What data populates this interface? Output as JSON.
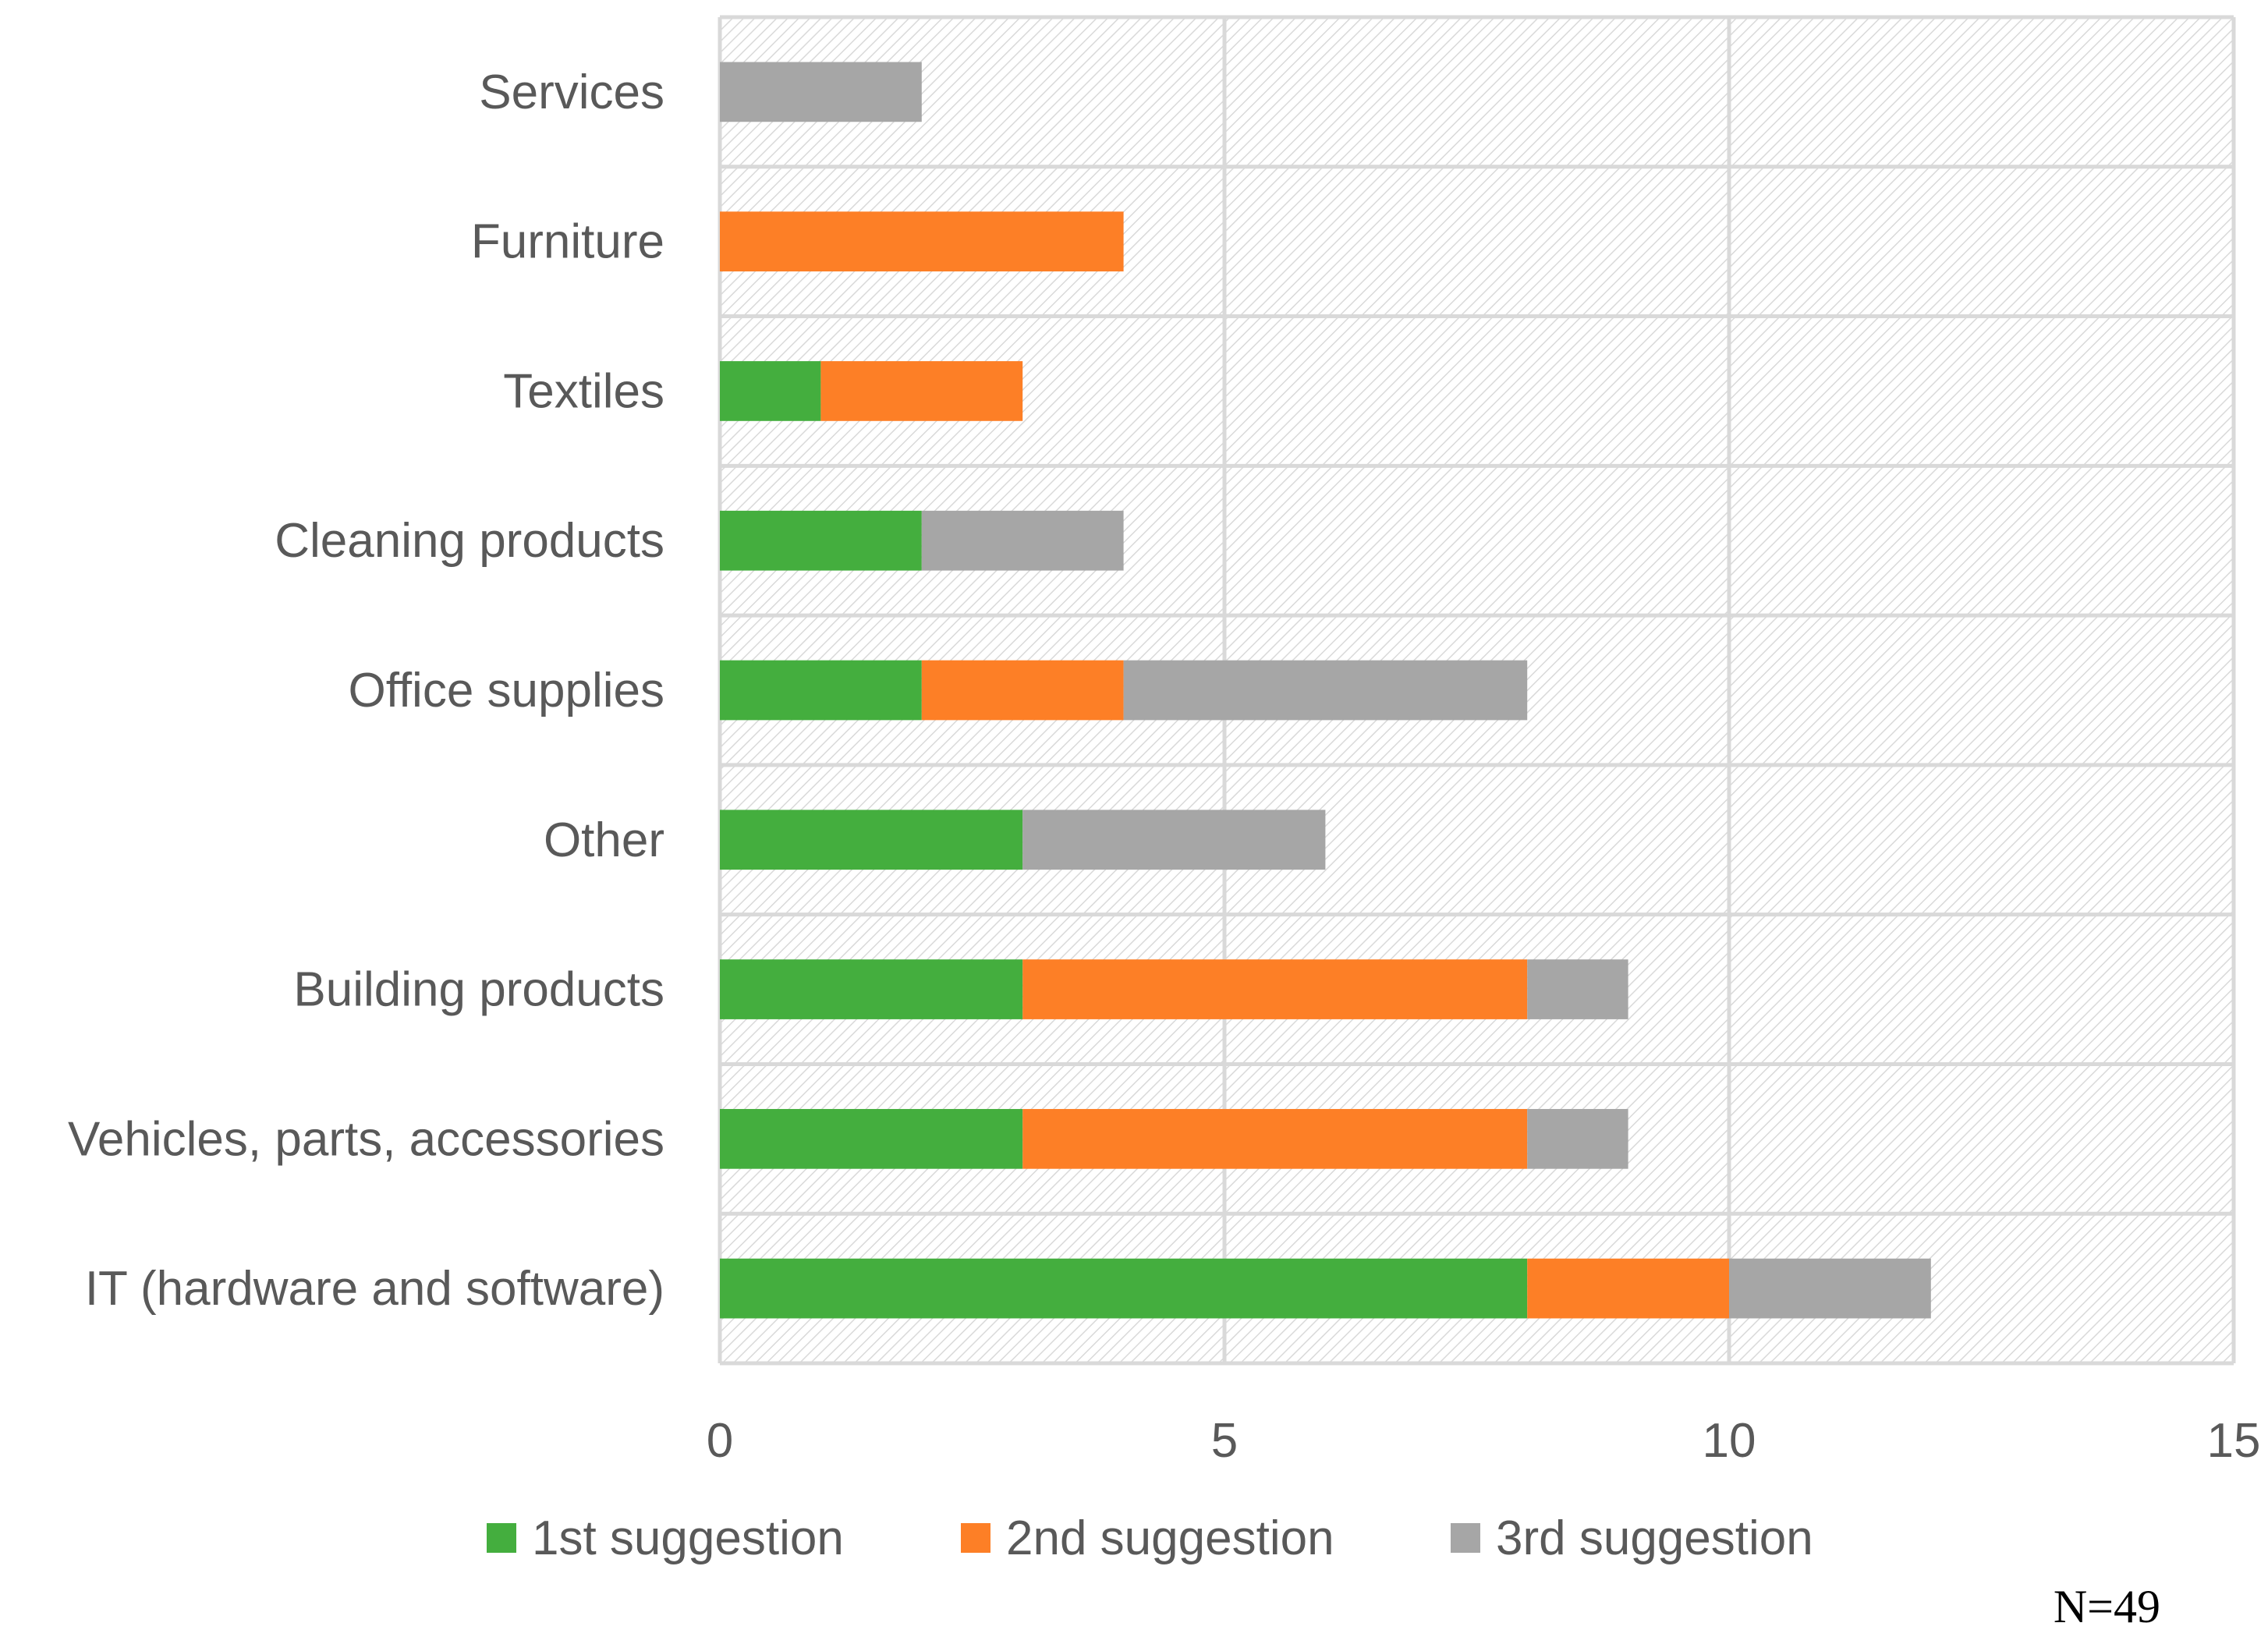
{
  "chart_data": {
    "type": "bar",
    "orientation": "horizontal",
    "stacked": true,
    "categories": [
      "Services",
      "Furniture",
      "Textiles",
      "Cleaning products",
      "Office supplies",
      "Other",
      "Building products",
      "Vehicles, parts, accessories",
      "IT (hardware and software)"
    ],
    "series": [
      {
        "name": "1st suggestion",
        "color": "#44AE3E",
        "values": [
          0,
          0,
          1,
          2,
          2,
          3,
          3,
          3,
          8
        ]
      },
      {
        "name": "2nd suggestion",
        "color": "#FD7F26",
        "values": [
          0,
          4,
          2,
          0,
          2,
          0,
          5,
          5,
          2
        ]
      },
      {
        "name": "3rd suggestion",
        "color": "#A6A6A6",
        "values": [
          2,
          0,
          0,
          2,
          4,
          3,
          1,
          1,
          2
        ]
      }
    ],
    "xlim": [
      0,
      15
    ],
    "xticks": [
      0,
      5,
      10,
      15
    ],
    "xtick_labels": [
      "0",
      "5",
      "10",
      "15"
    ],
    "grid": true,
    "legend_position": "bottom",
    "title": "",
    "xlabel": "",
    "ylabel": ""
  },
  "note": "N=49"
}
